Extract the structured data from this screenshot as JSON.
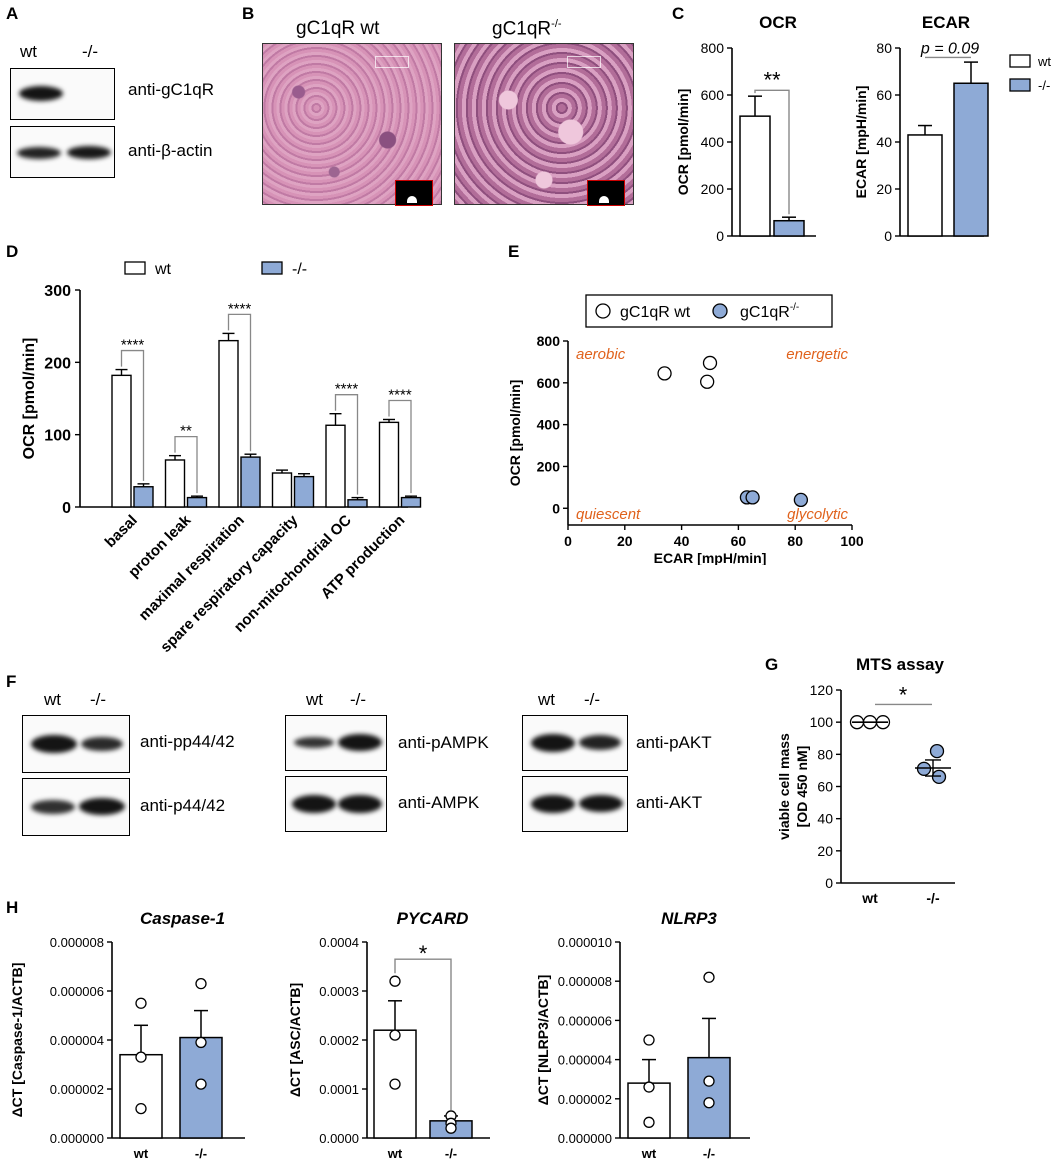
{
  "panels": {
    "A": "A",
    "B": "B",
    "C": "C",
    "D": "D",
    "E": "E",
    "F": "F",
    "G": "G",
    "H": "H"
  },
  "panelA": {
    "wt": "wt",
    "ko": "-/-",
    "top_label": "anti-gC1qR",
    "bottom_label": "anti-β-actin"
  },
  "panelB": {
    "left_title": "gC1qR wt",
    "right_title_base": "gC1qR",
    "right_title_sup": "-/-"
  },
  "panelF": {
    "wt": "wt",
    "ko": "-/-",
    "blot1_top": "anti-pp44/42",
    "blot1_bottom": "anti-p44/42",
    "blot2_top": "anti-pAMPK",
    "blot2_bottom": "anti-AMPK",
    "blot3_top": "anti-pAKT",
    "blot3_bottom": "anti-AKT"
  },
  "chart_data": [
    {
      "id": "C-OCR",
      "type": "bar",
      "title": "OCR",
      "ylabel": "OCR [pmol/min]",
      "ylim": [
        0,
        800
      ],
      "yticks": [
        0,
        200,
        400,
        600,
        800
      ],
      "categories": [
        "wt",
        "-/-"
      ],
      "values": [
        510,
        65
      ],
      "errors": [
        85,
        15
      ],
      "colors": [
        "#ffffff",
        "#8eaad6"
      ],
      "significance": "**"
    },
    {
      "id": "C-ECAR",
      "type": "bar",
      "title": "ECAR",
      "ylabel": "ECAR [mpH/min]",
      "ylim": [
        0,
        80
      ],
      "yticks": [
        0,
        20,
        40,
        60,
        80
      ],
      "categories": [
        "wt",
        "-/-"
      ],
      "values": [
        43,
        65
      ],
      "errors": [
        4,
        9
      ],
      "colors": [
        "#ffffff",
        "#8eaad6"
      ],
      "significance": "p = 0.09",
      "legend": [
        {
          "name": "wt",
          "color": "#ffffff"
        },
        {
          "name": "-/-",
          "color": "#8eaad6"
        }
      ]
    },
    {
      "id": "D",
      "type": "bar",
      "ylabel": "OCR [pmol/min]",
      "ylim": [
        0,
        300
      ],
      "yticks": [
        0,
        100,
        200,
        300
      ],
      "categories": [
        "basal",
        "proton leak",
        "maximal respiration",
        "spare respiratory capacity",
        "non-mitochondrial OC",
        "ATP production"
      ],
      "series": [
        {
          "name": "wt",
          "values": [
            182,
            65,
            230,
            47,
            113,
            117
          ],
          "errors": [
            8,
            6,
            10,
            4,
            16,
            4
          ],
          "color": "#ffffff"
        },
        {
          "name": "-/-",
          "values": [
            28,
            13,
            69,
            42,
            10,
            13
          ],
          "errors": [
            4,
            2,
            4,
            4,
            3,
            2
          ],
          "color": "#8eaad6"
        }
      ],
      "significance": [
        "****",
        "**",
        "****",
        "",
        "****",
        "****"
      ]
    },
    {
      "id": "E",
      "type": "scatter",
      "xlabel": "ECAR [mpH/min]",
      "ylabel": "OCR [pmol/min]",
      "xlim": [
        0,
        100
      ],
      "ylim": [
        -80,
        800
      ],
      "xticks": [
        0,
        20,
        40,
        60,
        80,
        100
      ],
      "yticks": [
        0,
        200,
        400,
        600,
        800
      ],
      "series": [
        {
          "name": "gC1qR wt",
          "points": [
            [
              34,
              645
            ],
            [
              49,
              605
            ],
            [
              50,
              695
            ]
          ],
          "color": "#ffffff"
        },
        {
          "name": "gC1qR-/-",
          "points": [
            [
              63,
              52
            ],
            [
              65,
              52
            ],
            [
              82,
              40
            ]
          ],
          "color": "#8eaad6"
        }
      ],
      "legend": {
        "wt": "gC1qR wt",
        "ko_base": "gC1qR",
        "ko_sup": "-/-"
      },
      "annotations": [
        {
          "text": "aerobic",
          "pos": "top-left"
        },
        {
          "text": "energetic",
          "pos": "top-right"
        },
        {
          "text": "quiescent",
          "pos": "bottom-left"
        },
        {
          "text": "glycolytic",
          "pos": "bottom-right"
        }
      ],
      "annotation_color": "#e0621c"
    },
    {
      "id": "G",
      "type": "scatter",
      "title": "MTS assay",
      "ylabel": "viable cell mass [OD 450 nM]",
      "ylim": [
        0,
        120
      ],
      "yticks": [
        0,
        20,
        40,
        60,
        80,
        100,
        120
      ],
      "categories": [
        "wt",
        "-/-"
      ],
      "points": {
        "wt": [
          100,
          100,
          100
        ],
        "-/-": [
          82,
          71,
          66
        ]
      },
      "means": [
        100,
        71.5
      ],
      "sem": [
        0,
        5
      ],
      "significance": "*"
    },
    {
      "id": "H-Caspase",
      "type": "bar",
      "title": "Caspase-1",
      "ylabel": "ΔCT [Caspase-1/ACTB]",
      "ylim": [
        0,
        8e-06
      ],
      "yticks": [
        "0.000000",
        "0.000002",
        "0.000004",
        "0.000006",
        "0.000008"
      ],
      "categories": [
        "wt",
        "-/-"
      ],
      "values": [
        3.4e-06,
        4.1e-06
      ],
      "errors": [
        1.2e-06,
        1.1e-06
      ],
      "points": [
        [
          5.5e-06,
          3.3e-06,
          1.2e-06
        ],
        [
          6.3e-06,
          3.9e-06,
          2.2e-06
        ]
      ]
    },
    {
      "id": "H-PYCARD",
      "type": "bar",
      "title": "PYCARD",
      "ylabel": "ΔCT [ASC/ACTB]",
      "ylim": [
        0,
        0.0004
      ],
      "yticks": [
        "0.0000",
        "0.0001",
        "0.0002",
        "0.0003",
        "0.0004"
      ],
      "categories": [
        "wt",
        "-/-"
      ],
      "values": [
        0.00022,
        3.5e-05
      ],
      "errors": [
        6e-05,
        1e-05
      ],
      "points": [
        [
          0.00032,
          0.00021,
          0.00011
        ],
        [
          4.5e-05,
          3e-05,
          2e-05
        ]
      ],
      "significance": "*"
    },
    {
      "id": "H-NLRP3",
      "type": "bar",
      "title": "NLRP3",
      "ylabel": "ΔCT [NLRP3/ACTB]",
      "ylim": [
        0,
        1e-05
      ],
      "yticks": [
        "0.000000",
        "0.000002",
        "0.000004",
        "0.000006",
        "0.000008",
        "0.000010"
      ],
      "categories": [
        "wt",
        "-/-"
      ],
      "values": [
        2.8e-06,
        4.1e-06
      ],
      "errors": [
        1.2e-06,
        2e-06
      ],
      "points": [
        [
          5e-06,
          2.6e-06,
          8e-07
        ],
        [
          8.2e-06,
          2.9e-06,
          1.8e-06
        ]
      ]
    }
  ]
}
